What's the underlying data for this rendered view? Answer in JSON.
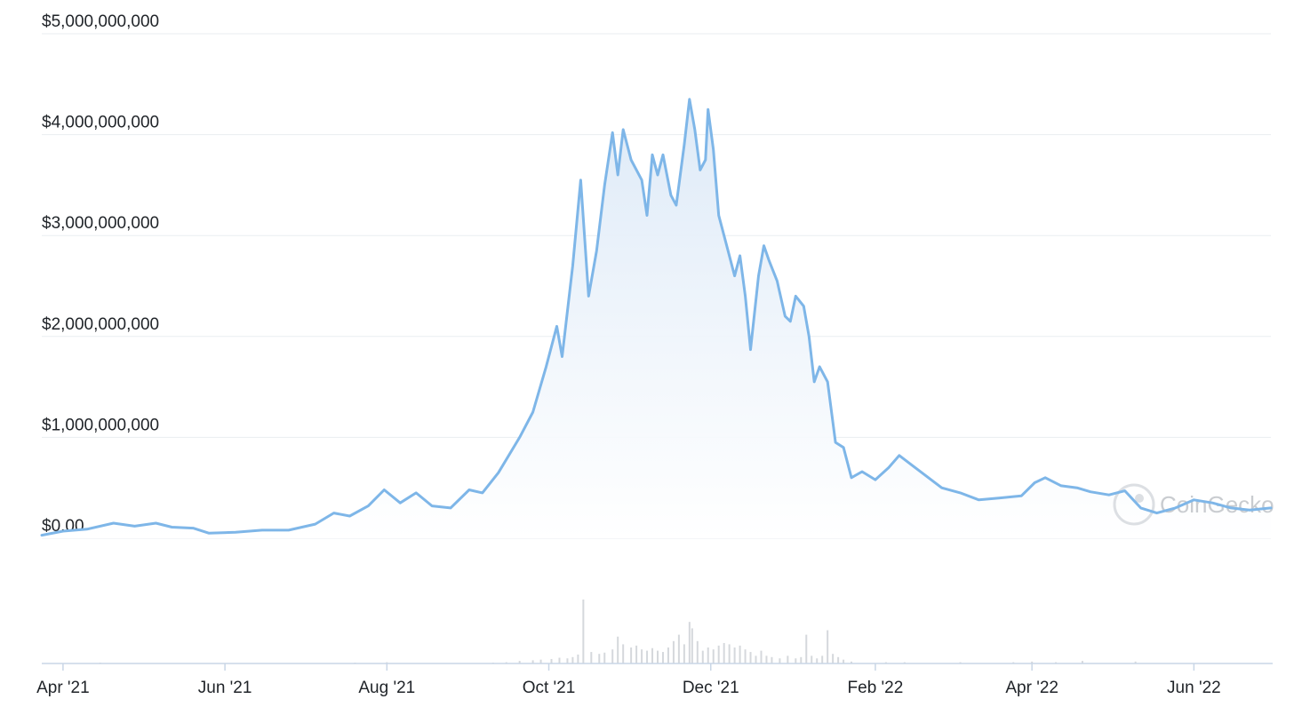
{
  "chart_data": {
    "type": "area",
    "y_axis": {
      "ylim": [
        0,
        5000000000
      ],
      "ticks": [
        0,
        1000000000,
        2000000000,
        3000000000,
        4000000000,
        5000000000
      ],
      "tick_labels": [
        "$0.00",
        "$1,000,000,000",
        "$2,000,000,000",
        "$3,000,000,000",
        "$4,000,000,000",
        "$5,000,000,000"
      ]
    },
    "x_axis": {
      "start": "2021-03-24",
      "end": "2022-06-30",
      "ticks": [
        "2021-04-01",
        "2021-06-01",
        "2021-08-01",
        "2021-10-01",
        "2021-12-01",
        "2022-02-01",
        "2022-04-01",
        "2022-06-01"
      ],
      "tick_labels": [
        "Apr '21",
        "Jun '21",
        "Aug '21",
        "Oct '21",
        "Dec '21",
        "Feb '22",
        "Apr '22",
        "Jun '22"
      ]
    },
    "grid": true,
    "line_color": "#7eb6e8",
    "bar_color": "#d5d8dc",
    "watermark": "CoinGecko",
    "series": [
      {
        "values": [
          [
            "2021-03-24",
            30000000.0
          ],
          [
            "2021-04-01",
            70000000.0
          ],
          [
            "2021-04-10",
            90000000.0
          ],
          [
            "2021-04-20",
            150000000.0
          ],
          [
            "2021-04-28",
            120000000.0
          ],
          [
            "2021-05-06",
            150000000.0
          ],
          [
            "2021-05-12",
            110000000.0
          ],
          [
            "2021-05-20",
            100000000.0
          ],
          [
            "2021-05-26",
            50000000.0
          ],
          [
            "2021-06-05",
            60000000.0
          ],
          [
            "2021-06-15",
            80000000.0
          ],
          [
            "2021-06-25",
            80000000.0
          ],
          [
            "2021-07-05",
            140000000.0
          ],
          [
            "2021-07-12",
            250000000.0
          ],
          [
            "2021-07-18",
            220000000.0
          ],
          [
            "2021-07-25",
            320000000.0
          ],
          [
            "2021-07-31",
            480000000.0
          ],
          [
            "2021-08-06",
            350000000.0
          ],
          [
            "2021-08-12",
            450000000.0
          ],
          [
            "2021-08-18",
            320000000.0
          ],
          [
            "2021-08-25",
            300000000.0
          ],
          [
            "2021-09-01",
            480000000.0
          ],
          [
            "2021-09-06",
            450000000.0
          ],
          [
            "2021-09-12",
            650000000.0
          ],
          [
            "2021-09-20",
            1000000000.0
          ],
          [
            "2021-09-25",
            1250000000.0
          ],
          [
            "2021-09-30",
            1700000000.0
          ],
          [
            "2021-10-04",
            2100000000.0
          ],
          [
            "2021-10-06",
            1800000000.0
          ],
          [
            "2021-10-10",
            2700000000.0
          ],
          [
            "2021-10-13",
            3550000000.0
          ],
          [
            "2021-10-16",
            2400000000.0
          ],
          [
            "2021-10-19",
            2850000000.0
          ],
          [
            "2021-10-22",
            3500000000.0
          ],
          [
            "2021-10-25",
            4020000000.0
          ],
          [
            "2021-10-27",
            3600000000.0
          ],
          [
            "2021-10-29",
            4050000000.0
          ],
          [
            "2021-11-01",
            3750000000.0
          ],
          [
            "2021-11-05",
            3550000000.0
          ],
          [
            "2021-11-07",
            3200000000.0
          ],
          [
            "2021-11-09",
            3800000000.0
          ],
          [
            "2021-11-11",
            3600000000.0
          ],
          [
            "2021-11-13",
            3800000000.0
          ],
          [
            "2021-11-16",
            3400000000.0
          ],
          [
            "2021-11-18",
            3300000000.0
          ],
          [
            "2021-11-21",
            3900000000.0
          ],
          [
            "2021-11-23",
            4350000000.0
          ],
          [
            "2021-11-25",
            4050000000.0
          ],
          [
            "2021-11-27",
            3650000000.0
          ],
          [
            "2021-11-29",
            3750000000.0
          ],
          [
            "2021-11-30",
            4250000000.0
          ],
          [
            "2021-12-02",
            3850000000.0
          ],
          [
            "2021-12-04",
            3200000000.0
          ],
          [
            "2021-12-07",
            2900000000.0
          ],
          [
            "2021-12-10",
            2600000000.0
          ],
          [
            "2021-12-12",
            2800000000.0
          ],
          [
            "2021-12-14",
            2400000000.0
          ],
          [
            "2021-12-16",
            1870000000.0
          ],
          [
            "2021-12-19",
            2600000000.0
          ],
          [
            "2021-12-21",
            2900000000.0
          ],
          [
            "2021-12-23",
            2750000000.0
          ],
          [
            "2021-12-26",
            2550000000.0
          ],
          [
            "2021-12-29",
            2200000000.0
          ],
          [
            "2021-12-31",
            2150000000.0
          ],
          [
            "2022-01-02",
            2400000000.0
          ],
          [
            "2022-01-05",
            2300000000.0
          ],
          [
            "2022-01-07",
            2000000000.0
          ],
          [
            "2022-01-09",
            1550000000.0
          ],
          [
            "2022-01-11",
            1700000000.0
          ],
          [
            "2022-01-14",
            1550000000.0
          ],
          [
            "2022-01-17",
            950000000.0
          ],
          [
            "2022-01-20",
            900000000.0
          ],
          [
            "2022-01-23",
            600000000.0
          ],
          [
            "2022-01-27",
            660000000.0
          ],
          [
            "2022-02-01",
            580000000.0
          ],
          [
            "2022-02-06",
            700000000.0
          ],
          [
            "2022-02-10",
            820000000.0
          ],
          [
            "2022-02-15",
            720000000.0
          ],
          [
            "2022-02-20",
            620000000.0
          ],
          [
            "2022-02-26",
            500000000.0
          ],
          [
            "2022-03-05",
            450000000.0
          ],
          [
            "2022-03-12",
            380000000.0
          ],
          [
            "2022-03-20",
            400000000.0
          ],
          [
            "2022-03-28",
            420000000.0
          ],
          [
            "2022-04-02",
            550000000.0
          ],
          [
            "2022-04-06",
            600000000.0
          ],
          [
            "2022-04-12",
            520000000.0
          ],
          [
            "2022-04-18",
            500000000.0
          ],
          [
            "2022-04-23",
            460000000.0
          ],
          [
            "2022-04-30",
            430000000.0
          ],
          [
            "2022-05-06",
            470000000.0
          ],
          [
            "2022-05-12",
            300000000.0
          ],
          [
            "2022-05-18",
            250000000.0
          ],
          [
            "2022-05-25",
            300000000.0
          ],
          [
            "2022-06-01",
            380000000.0
          ],
          [
            "2022-06-08",
            350000000.0
          ],
          [
            "2022-06-15",
            300000000.0
          ],
          [
            "2022-06-22",
            280000000.0
          ],
          [
            "2022-06-30",
            300000000.0
          ]
        ]
      }
    ],
    "volume": [
      [
        "2021-04-15",
        0.005
      ],
      [
        "2021-07-20",
        0.005
      ],
      [
        "2021-08-01",
        0.02
      ],
      [
        "2021-09-10",
        0.01
      ],
      [
        "2021-09-15",
        0.02
      ],
      [
        "2021-09-20",
        0.04
      ],
      [
        "2021-09-25",
        0.05
      ],
      [
        "2021-09-28",
        0.06
      ],
      [
        "2021-10-02",
        0.07
      ],
      [
        "2021-10-05",
        0.09
      ],
      [
        "2021-10-08",
        0.08
      ],
      [
        "2021-10-10",
        0.1
      ],
      [
        "2021-10-12",
        0.14
      ],
      [
        "2021-10-14",
        1.0
      ],
      [
        "2021-10-17",
        0.18
      ],
      [
        "2021-10-20",
        0.15
      ],
      [
        "2021-10-22",
        0.17
      ],
      [
        "2021-10-25",
        0.22
      ],
      [
        "2021-10-27",
        0.42
      ],
      [
        "2021-10-29",
        0.3
      ],
      [
        "2021-11-01",
        0.25
      ],
      [
        "2021-11-03",
        0.28
      ],
      [
        "2021-11-05",
        0.22
      ],
      [
        "2021-11-07",
        0.2
      ],
      [
        "2021-11-09",
        0.24
      ],
      [
        "2021-11-11",
        0.2
      ],
      [
        "2021-11-13",
        0.18
      ],
      [
        "2021-11-15",
        0.25
      ],
      [
        "2021-11-17",
        0.35
      ],
      [
        "2021-11-19",
        0.45
      ],
      [
        "2021-11-21",
        0.3
      ],
      [
        "2021-11-23",
        0.65
      ],
      [
        "2021-11-24",
        0.55
      ],
      [
        "2021-11-26",
        0.35
      ],
      [
        "2021-11-28",
        0.2
      ],
      [
        "2021-11-30",
        0.25
      ],
      [
        "2021-12-02",
        0.22
      ],
      [
        "2021-12-04",
        0.28
      ],
      [
        "2021-12-06",
        0.32
      ],
      [
        "2021-12-08",
        0.3
      ],
      [
        "2021-12-10",
        0.25
      ],
      [
        "2021-12-12",
        0.28
      ],
      [
        "2021-12-14",
        0.22
      ],
      [
        "2021-12-16",
        0.18
      ],
      [
        "2021-12-18",
        0.12
      ],
      [
        "2021-12-20",
        0.2
      ],
      [
        "2021-12-22",
        0.12
      ],
      [
        "2021-12-24",
        0.1
      ],
      [
        "2021-12-27",
        0.08
      ],
      [
        "2021-12-30",
        0.12
      ],
      [
        "2022-01-02",
        0.08
      ],
      [
        "2022-01-04",
        0.1
      ],
      [
        "2022-01-06",
        0.45
      ],
      [
        "2022-01-08",
        0.12
      ],
      [
        "2022-01-10",
        0.08
      ],
      [
        "2022-01-12",
        0.12
      ],
      [
        "2022-01-14",
        0.52
      ],
      [
        "2022-01-16",
        0.15
      ],
      [
        "2022-01-18",
        0.1
      ],
      [
        "2022-01-20",
        0.06
      ],
      [
        "2022-01-23",
        0.03
      ],
      [
        "2022-02-05",
        0.02
      ],
      [
        "2022-02-12",
        0.02
      ],
      [
        "2022-03-05",
        0.02
      ],
      [
        "2022-03-25",
        0.02
      ],
      [
        "2022-04-01",
        0.03
      ],
      [
        "2022-04-10",
        0.02
      ],
      [
        "2022-04-20",
        0.04
      ],
      [
        "2022-05-10",
        0.03
      ]
    ]
  }
}
